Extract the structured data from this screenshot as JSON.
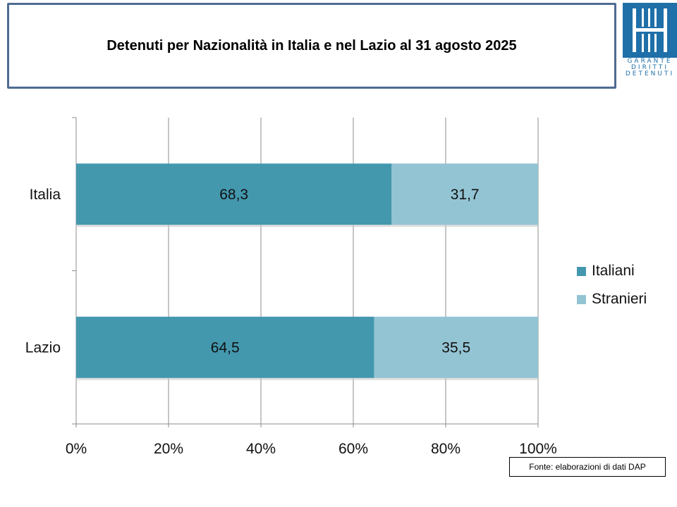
{
  "title": "Detenuti per Nazionalità in Italia e nel Lazio al 31 agosto 2025",
  "logo": {
    "lines": [
      "GARANTE",
      "DIRITTI",
      "DETENUTI"
    ]
  },
  "source": "Fonte: elaborazioni di dati DAP",
  "colors": {
    "italiani": "#4398ae",
    "stranieri": "#93c4d3",
    "grid": "#8c8c8c",
    "frame": "#4f6b93",
    "logo": "#1f6fa8"
  },
  "chart_data": {
    "type": "bar",
    "orientation": "horizontal",
    "stacked": "percent",
    "categories": [
      "Italia",
      "Lazio"
    ],
    "series": [
      {
        "name": "Italiani",
        "values": [
          68.3,
          64.5
        ],
        "labels": [
          "68,3",
          "64,5"
        ]
      },
      {
        "name": "Stranieri",
        "values": [
          31.7,
          35.5
        ],
        "labels": [
          "31,7",
          "35,5"
        ]
      }
    ],
    "xlim": [
      0,
      100
    ],
    "xticks": [
      "0%",
      "20%",
      "40%",
      "60%",
      "80%",
      "100%"
    ],
    "grid": true,
    "legend": "right"
  }
}
